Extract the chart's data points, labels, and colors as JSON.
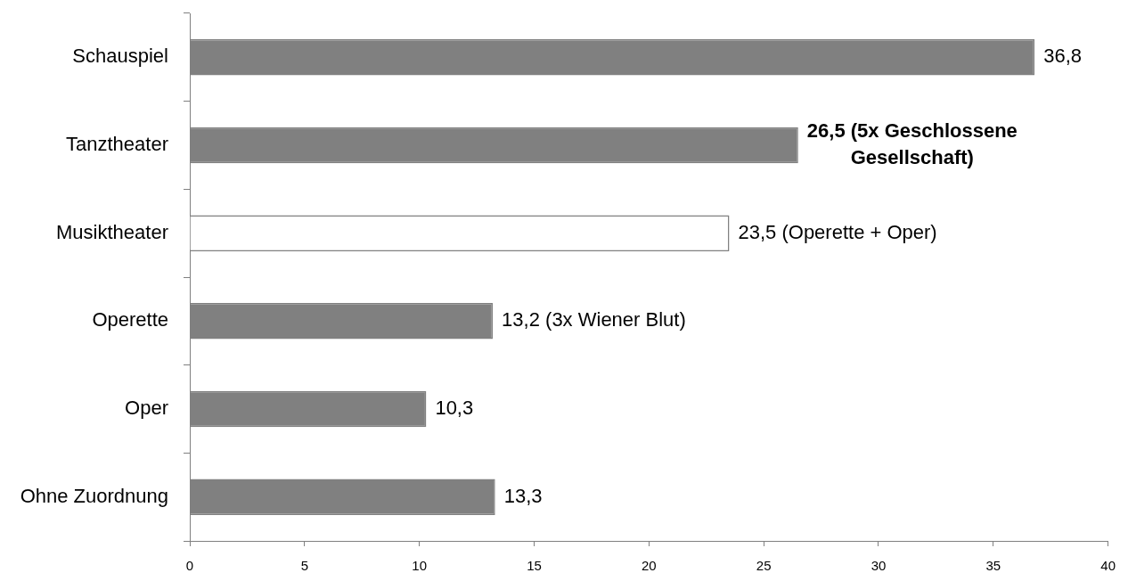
{
  "chart_data": {
    "type": "bar",
    "orientation": "horizontal",
    "categories": [
      "Schauspiel",
      "Tanztheater",
      "Musiktheater",
      "Operette",
      "Oper",
      "Ohne Zuordnung"
    ],
    "values": [
      36.8,
      26.5,
      23.5,
      13.2,
      10.3,
      13.3
    ],
    "color": "#808080",
    "colors": [
      "#808080",
      "#808080",
      "#ffffff",
      "#808080",
      "#808080",
      "#808080"
    ],
    "value_labels": [
      "36,8",
      "26,5 (5x Geschlossene Gesellschaft)",
      "23,5 (Operette + Oper)",
      "13,2 (3x Wiener Blut)",
      "10,3",
      "13,3"
    ],
    "xlim": [
      0,
      40
    ],
    "xticks": [
      0,
      5,
      10,
      15,
      20,
      25,
      30,
      35,
      40
    ]
  }
}
